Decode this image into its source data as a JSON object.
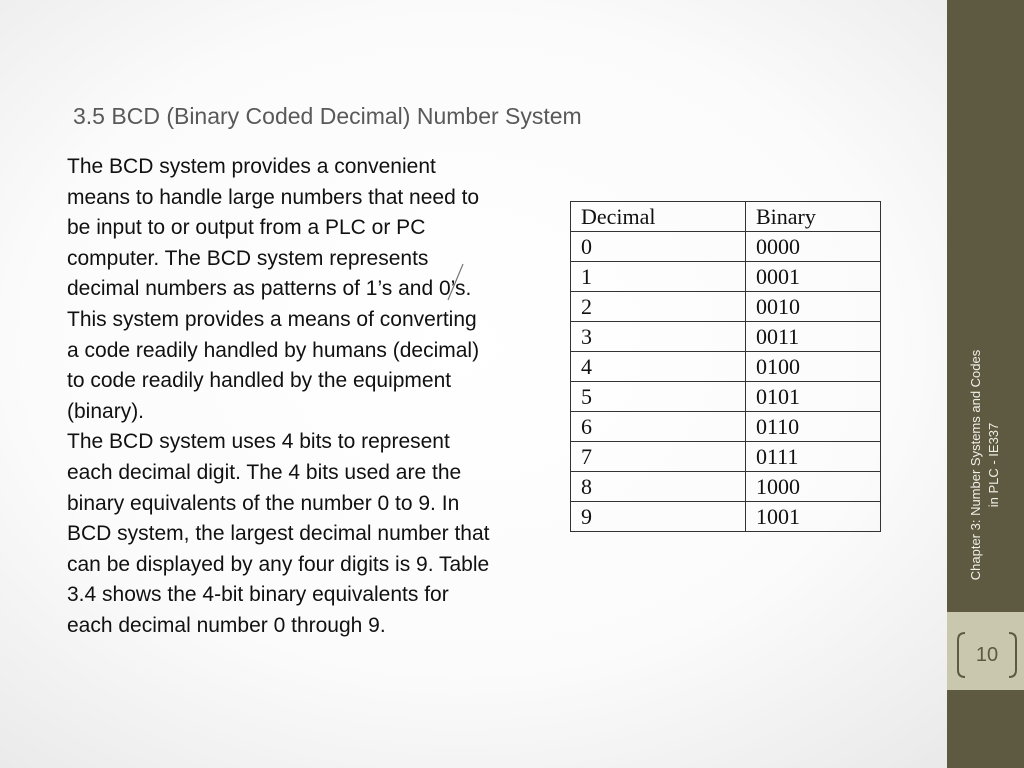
{
  "slide": {
    "title": "3.5 BCD (Binary Coded Decimal) Number System",
    "paragraphs": [
      "The BCD system provides a convenient means to handle large numbers that need to be input to or output from a PLC or PC computer. The BCD system represents decimal numbers as patterns of 1’s and 0’s. This system provides a means of converting a code readily handled by humans (decimal) to code readily handled by the equipment (binary).",
      "The BCD system uses 4 bits to represent each decimal digit. The 4 bits used are the binary equivalents of the number 0 to 9. In BCD system, the largest decimal number that can be displayed by any four digits is 9. Table 3.4 shows the 4-bit binary equivalents for each decimal number 0 through 9."
    ],
    "table": {
      "header": [
        "Decimal",
        "Binary"
      ],
      "rows": [
        [
          "0",
          "0000"
        ],
        [
          "1",
          "0001"
        ],
        [
          "2",
          "0010"
        ],
        [
          "3",
          "0011"
        ],
        [
          "4",
          "0100"
        ],
        [
          "5",
          "0101"
        ],
        [
          "6",
          "0110"
        ],
        [
          "7",
          "0111"
        ],
        [
          "8",
          "1000"
        ],
        [
          "9",
          "1001"
        ]
      ]
    },
    "sidebar_text": "Chapter 3: Number Systems and Codes in PLC - IE337",
    "page_number": "10"
  }
}
